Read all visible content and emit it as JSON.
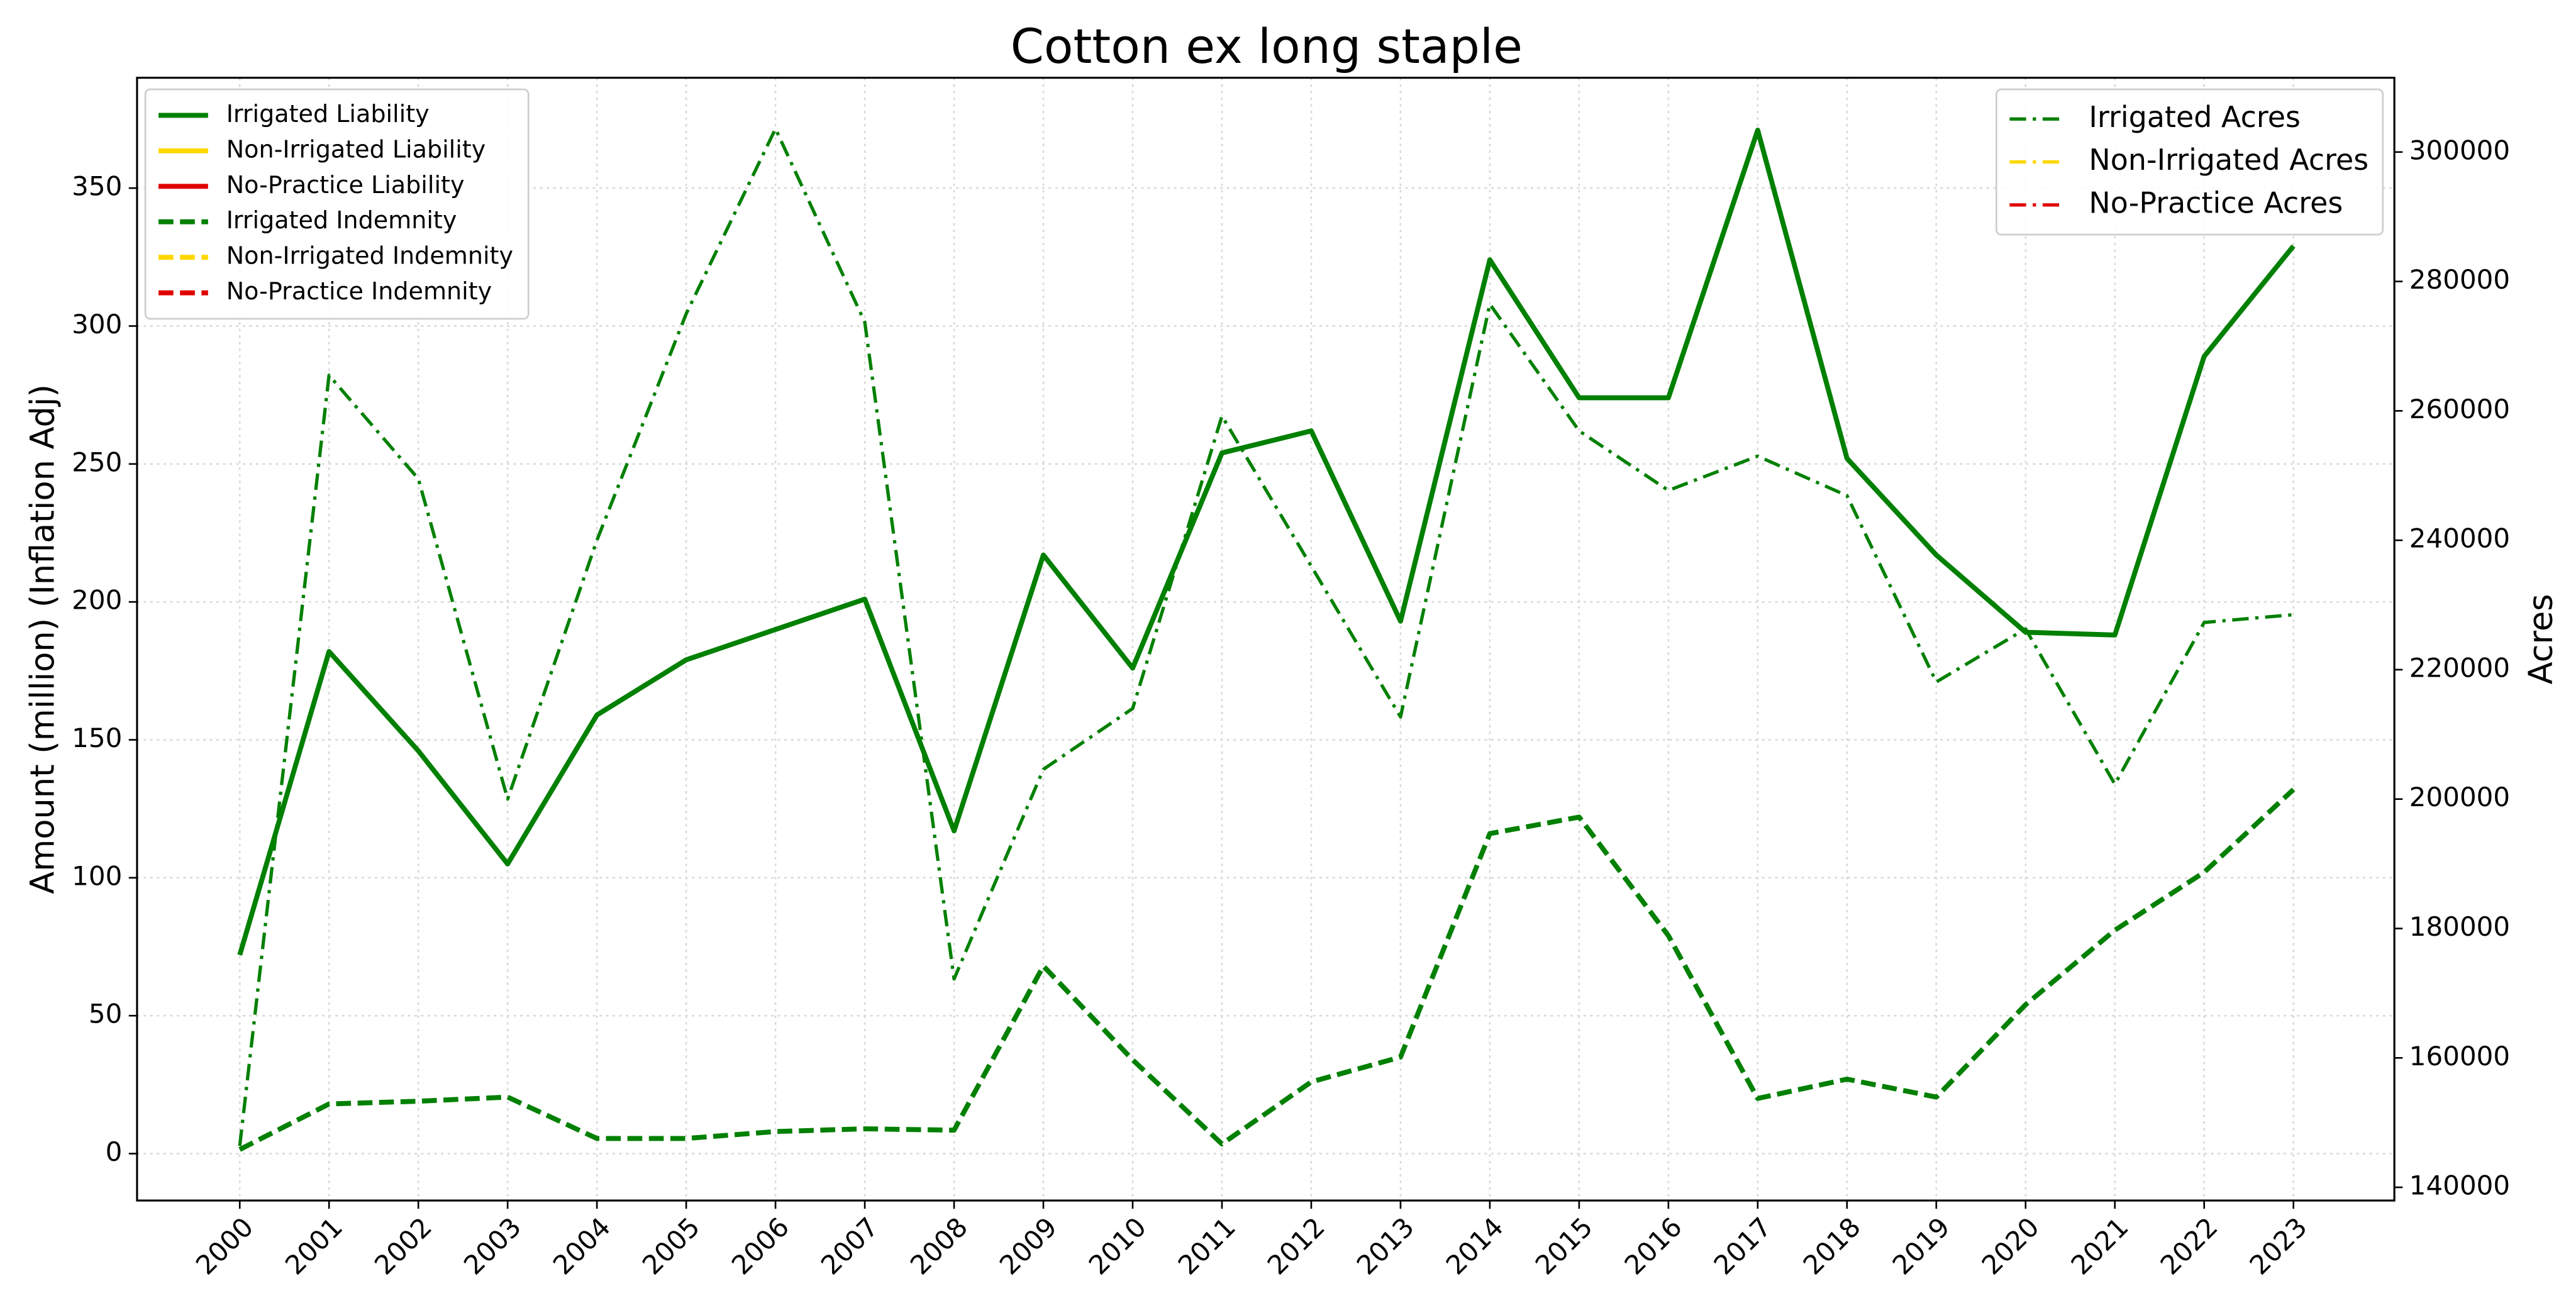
{
  "chart_data": {
    "type": "line",
    "title": "Cotton ex long staple",
    "ylabel": "Amount (million) (Inflation Adj)",
    "y2label": "Acres",
    "x": [
      2000,
      2001,
      2002,
      2003,
      2004,
      2005,
      2006,
      2007,
      2008,
      2009,
      2010,
      2011,
      2012,
      2013,
      2014,
      2015,
      2016,
      2017,
      2018,
      2019,
      2020,
      2021,
      2022,
      2023
    ],
    "xlim": [
      1998.85,
      2024.13
    ],
    "xticks": [
      2000,
      2001,
      2002,
      2003,
      2004,
      2005,
      2006,
      2007,
      2008,
      2009,
      2010,
      2011,
      2012,
      2013,
      2014,
      2015,
      2016,
      2017,
      2018,
      2019,
      2020,
      2021,
      2022,
      2023
    ],
    "ylim": [
      -17,
      390
    ],
    "yticks": [
      0,
      50,
      100,
      150,
      200,
      250,
      300,
      350
    ],
    "y2lim": [
      137960,
      311480
    ],
    "y2ticks": [
      140000,
      160000,
      180000,
      200000,
      220000,
      240000,
      260000,
      280000,
      300000
    ],
    "grid": true,
    "legend": "upper left",
    "legend2": "upper right",
    "series": [
      {
        "name": "Irrigated Liability",
        "color": "#008000",
        "linestyle": "solid",
        "axis": "y",
        "values": [
          72,
          182,
          146,
          105,
          159,
          179,
          190,
          201,
          117,
          217,
          176,
          254,
          262,
          193,
          324,
          274,
          274,
          371,
          252,
          217,
          189,
          188,
          289,
          329
        ]
      },
      {
        "name": "Non-Irrigated Liability",
        "color": "#ffd700",
        "linestyle": "solid",
        "axis": "y",
        "values": [
          null,
          null,
          null,
          null,
          null,
          null,
          null,
          null,
          null,
          null,
          null,
          null,
          null,
          null,
          null,
          null,
          null,
          null,
          null,
          null,
          null,
          null,
          null,
          null
        ]
      },
      {
        "name": "No-Practice Liability",
        "color": "#e00000",
        "linestyle": "solid",
        "axis": "y",
        "values": [
          null,
          null,
          null,
          null,
          null,
          null,
          null,
          null,
          null,
          null,
          null,
          null,
          null,
          null,
          null,
          null,
          null,
          null,
          null,
          null,
          null,
          null,
          null,
          null
        ]
      },
      {
        "name": "Irrigated Indemnity",
        "color": "#008000",
        "linestyle": "dashed",
        "axis": "y",
        "values": [
          1.5,
          18,
          19,
          20.5,
          5.5,
          5.5,
          8,
          9,
          8.5,
          68,
          34,
          3.5,
          26,
          35,
          116,
          122,
          79,
          20,
          27,
          20.5,
          54,
          81,
          102,
          132
        ]
      },
      {
        "name": "Non-Irrigated Indemnity",
        "color": "#ffd700",
        "linestyle": "dashed",
        "axis": "y",
        "values": [
          null,
          null,
          null,
          null,
          null,
          null,
          null,
          null,
          null,
          null,
          null,
          null,
          null,
          null,
          null,
          null,
          null,
          null,
          null,
          null,
          null,
          null,
          null,
          null
        ]
      },
      {
        "name": "No-Practice Indemnity",
        "color": "#e00000",
        "linestyle": "dashed",
        "axis": "y",
        "values": [
          null,
          null,
          null,
          null,
          null,
          null,
          null,
          null,
          null,
          null,
          null,
          null,
          null,
          null,
          null,
          null,
          null,
          null,
          null,
          null,
          null,
          null,
          null,
          null
        ]
      },
      {
        "name": "Irrigated Acres",
        "color": "#008000",
        "linestyle": "dashdot",
        "axis": "y2",
        "values": [
          146400,
          265500,
          249500,
          200000,
          240000,
          275000,
          303600,
          273700,
          172200,
          204600,
          214000,
          259200,
          236000,
          212700,
          276500,
          256900,
          247700,
          253000,
          246900,
          218100,
          226300,
          202300,
          227300,
          228500
        ]
      },
      {
        "name": "Non-Irrigated Acres",
        "color": "#ffd700",
        "linestyle": "dashdot",
        "axis": "y2",
        "values": [
          null,
          null,
          null,
          null,
          null,
          null,
          null,
          null,
          null,
          null,
          null,
          null,
          null,
          null,
          null,
          null,
          null,
          null,
          null,
          null,
          null,
          null,
          null,
          null
        ]
      },
      {
        "name": "No-Practice Acres",
        "color": "#e00000",
        "linestyle": "dashdot",
        "axis": "y2",
        "values": [
          null,
          null,
          null,
          null,
          null,
          null,
          null,
          null,
          null,
          null,
          null,
          null,
          null,
          null,
          null,
          null,
          null,
          null,
          null,
          null,
          null,
          null,
          null,
          null
        ]
      }
    ]
  }
}
